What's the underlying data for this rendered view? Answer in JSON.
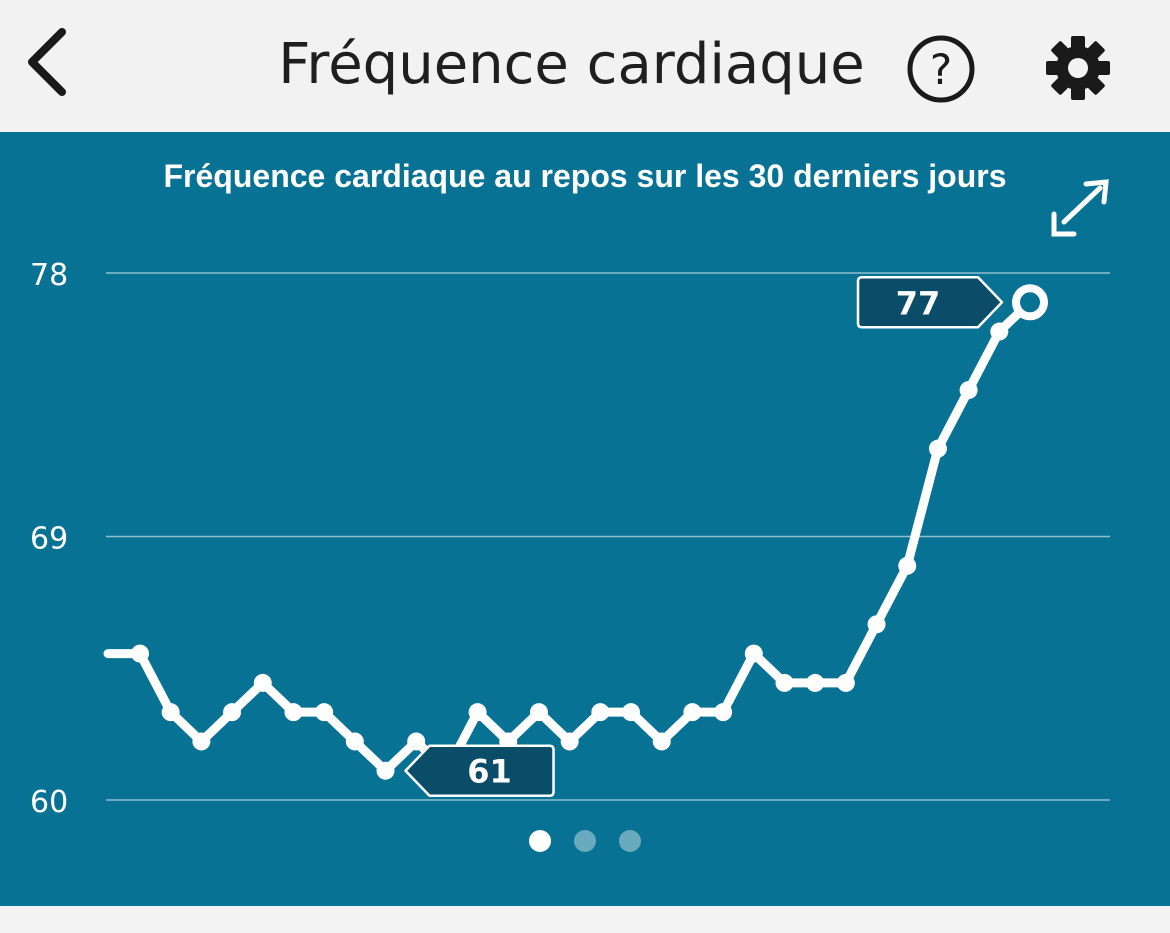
{
  "header": {
    "title": "Fréquence cardiaque",
    "back_icon": "chevron-left-icon",
    "help_icon": "question-circle-icon",
    "settings_icon": "gear-icon"
  },
  "colors": {
    "header_bg": "#f2f2f2",
    "card_bg": "#087294",
    "callout_bg": "#0b4d68",
    "line": "#ffffff"
  },
  "chart_data": {
    "type": "line",
    "title": "Fréquence cardiaque au repos sur les 30 derniers jours",
    "ylim": [
      60,
      78
    ],
    "yticks": [
      60,
      69,
      78
    ],
    "grid": true,
    "x": [
      1,
      2,
      3,
      4,
      5,
      6,
      7,
      8,
      9,
      10,
      11,
      12,
      13,
      14,
      15,
      16,
      17,
      18,
      19,
      20,
      21,
      22,
      23,
      24,
      25,
      26,
      27,
      28,
      29,
      30
    ],
    "series": [
      {
        "values": [
          65,
          63,
          62,
          63,
          64,
          63,
          63,
          62,
          61,
          62,
          61,
          63,
          62,
          63,
          62,
          63,
          63,
          62,
          63,
          63,
          65,
          64,
          64,
          64,
          66,
          68,
          72,
          74,
          76,
          77
        ]
      }
    ],
    "annotations": [
      {
        "label": "61",
        "index": 8
      },
      {
        "label": "77",
        "index": 29
      }
    ],
    "expand_icon": "expand-arrows-icon"
  },
  "pager": {
    "pages": 3,
    "active": 0
  }
}
